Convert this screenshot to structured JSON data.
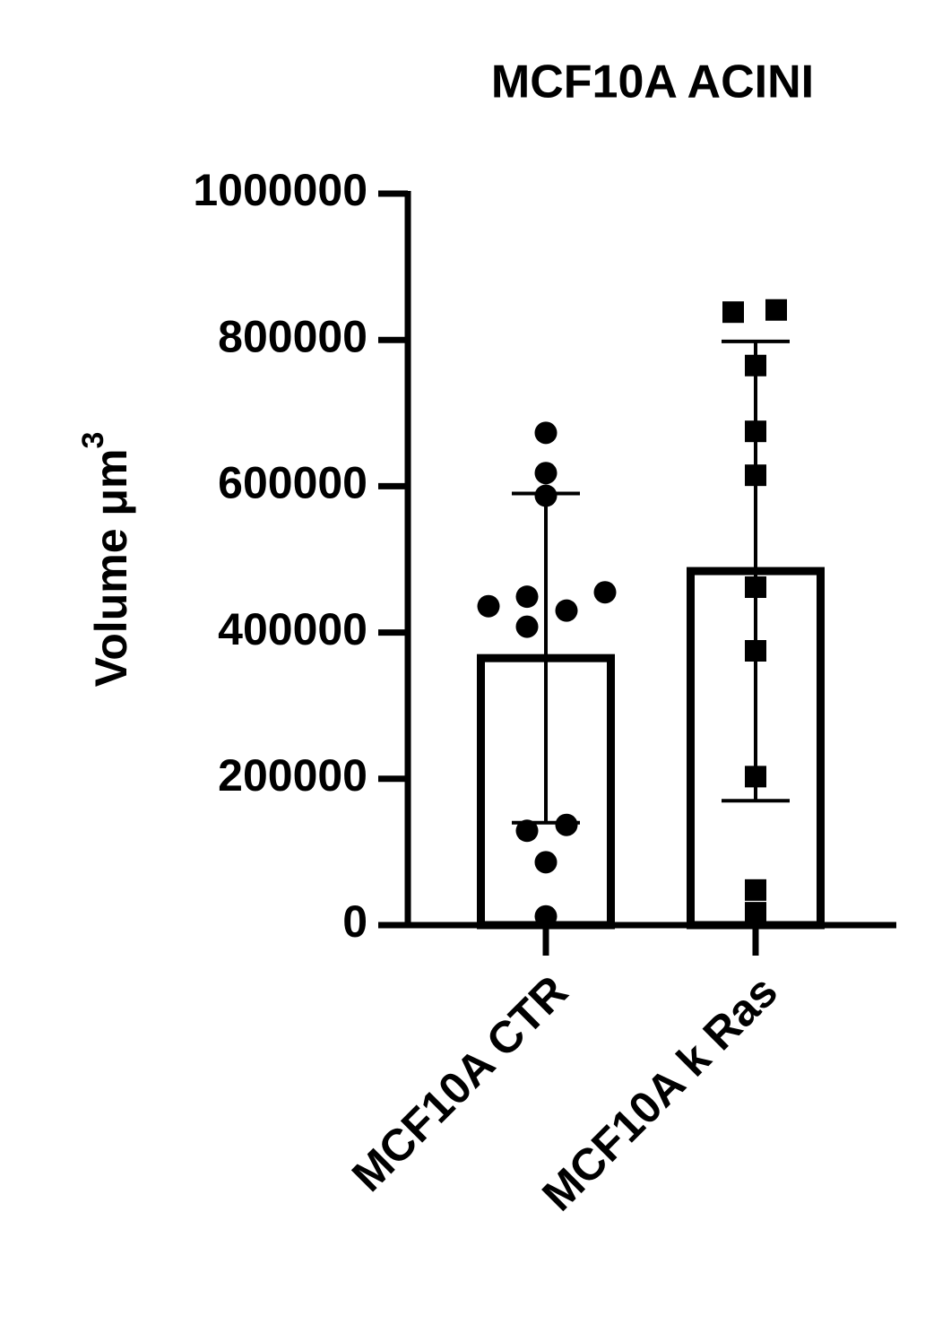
{
  "chart_data": {
    "type": "bar",
    "title": "MCF10A ACINI",
    "y_label": "Volume μm",
    "y_label_sup": "3",
    "categories": [
      "MCF10A CTR",
      "MCF10A k Ras"
    ],
    "values": [
      365000,
      484000
    ],
    "errors": [
      225000,
      314000
    ],
    "points": [
      [
        436000,
        449000,
        408000,
        430000,
        455000,
        673000,
        618000,
        587000,
        129000,
        137000,
        86000,
        12000
      ],
      [
        838000,
        841000,
        765000,
        675000,
        615000,
        462000,
        375000,
        203000,
        48000,
        17000
      ]
    ],
    "point_markers": [
      "circle",
      "square"
    ],
    "color": "#000000",
    "ylim": [
      0,
      1000000
    ],
    "yticks": [
      0,
      200000,
      400000,
      600000,
      800000,
      1000000
    ]
  }
}
